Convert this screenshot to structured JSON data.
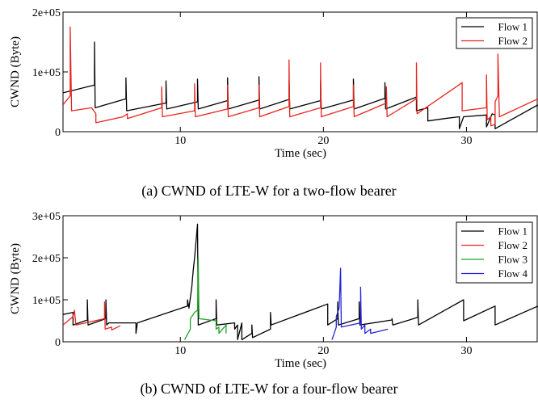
{
  "chart_data": [
    {
      "type": "line",
      "caption": "(a) CWND of LTE-W for a two-flow bearer",
      "xlabel": "Time (sec)",
      "ylabel": "CWND (Byte)",
      "xlim": [
        1.8,
        35
      ],
      "ylim": [
        0,
        200000
      ],
      "xticks": [
        10,
        20,
        30
      ],
      "xtick_labels": [
        "10",
        "20",
        "30"
      ],
      "yticks": [
        0,
        100000,
        200000
      ],
      "ytick_labels": [
        "0",
        "1e+05",
        "2e+05"
      ],
      "grid": false,
      "legend_position": "top-right",
      "series": [
        {
          "name": "Flow 1",
          "color": "#000000",
          "points": [
            [
              1.8,
              65000
            ],
            [
              4.0,
              78000
            ],
            [
              4.0,
              150000
            ],
            [
              4.05,
              40000
            ],
            [
              6.2,
              55000
            ],
            [
              6.2,
              90000
            ],
            [
              6.25,
              35000
            ],
            [
              9.0,
              48000
            ],
            [
              9.0,
              85000
            ],
            [
              9.05,
              38000
            ],
            [
              11.2,
              50000
            ],
            [
              11.2,
              88000
            ],
            [
              11.25,
              38000
            ],
            [
              13.3,
              52000
            ],
            [
              13.3,
              90000
            ],
            [
              13.35,
              38000
            ],
            [
              15.5,
              53000
            ],
            [
              15.5,
              92000
            ],
            [
              15.55,
              38000
            ],
            [
              17.6,
              54000
            ],
            [
              17.6,
              85000
            ],
            [
              17.65,
              38000
            ],
            [
              19.8,
              52000
            ],
            [
              19.8,
              85000
            ],
            [
              19.85,
              38000
            ],
            [
              22.1,
              53000
            ],
            [
              22.1,
              88000
            ],
            [
              22.15,
              38000
            ],
            [
              24.3,
              56000
            ],
            [
              24.3,
              82000
            ],
            [
              24.35,
              38000
            ],
            [
              26.5,
              58000
            ],
            [
              26.5,
              35000
            ],
            [
              27.3,
              40000
            ],
            [
              27.3,
              18000
            ],
            [
              28.5,
              22000
            ],
            [
              29.5,
              25000
            ],
            [
              29.5,
              5000
            ],
            [
              29.8,
              25000
            ],
            [
              31.4,
              28000
            ],
            [
              31.4,
              8000
            ],
            [
              31.8,
              30000
            ],
            [
              32.0,
              28000
            ],
            [
              32.0,
              5000
            ],
            [
              35.0,
              45000
            ]
          ]
        },
        {
          "name": "Flow 2",
          "color": "#e8241e",
          "points": [
            [
              1.8,
              45000
            ],
            [
              2.3,
              60000
            ],
            [
              2.3,
              175000
            ],
            [
              2.4,
              35000
            ],
            [
              3.8,
              40000
            ],
            [
              4.1,
              30000
            ],
            [
              4.1,
              15000
            ],
            [
              6.0,
              25000
            ],
            [
              6.3,
              30000
            ],
            [
              6.3,
              22000
            ],
            [
              8.7,
              40000
            ],
            [
              8.7,
              75000
            ],
            [
              8.75,
              25000
            ],
            [
              11.0,
              35000
            ],
            [
              11.0,
              80000
            ],
            [
              11.05,
              25000
            ],
            [
              13.3,
              38000
            ],
            [
              13.3,
              78000
            ],
            [
              13.35,
              25000
            ],
            [
              15.5,
              40000
            ],
            [
              15.5,
              78000
            ],
            [
              15.55,
              25000
            ],
            [
              17.6,
              42000
            ],
            [
              17.6,
              120000
            ],
            [
              17.65,
              25000
            ],
            [
              19.8,
              40000
            ],
            [
              19.8,
              115000
            ],
            [
              19.85,
              25000
            ],
            [
              22.1,
              42000
            ],
            [
              22.1,
              78000
            ],
            [
              22.15,
              25000
            ],
            [
              24.4,
              48000
            ],
            [
              24.4,
              75000
            ],
            [
              24.45,
              25000
            ],
            [
              26.5,
              55000
            ],
            [
              26.5,
              115000
            ],
            [
              26.55,
              30000
            ],
            [
              29.7,
              82000
            ],
            [
              29.7,
              35000
            ],
            [
              31.4,
              40000
            ],
            [
              31.4,
              95000
            ],
            [
              31.45,
              20000
            ],
            [
              31.7,
              25000
            ],
            [
              31.7,
              10000
            ],
            [
              32.0,
              12000
            ],
            [
              32.0,
              50000
            ],
            [
              32.2,
              60000
            ],
            [
              32.2,
              130000
            ],
            [
              32.3,
              25000
            ],
            [
              35.0,
              55000
            ]
          ]
        }
      ]
    },
    {
      "type": "line",
      "caption": "(b) CWND of LTE-W for a four-flow bearer",
      "xlabel": "Time (sec)",
      "ylabel": "CWND (Byte)",
      "xlim": [
        1.8,
        35
      ],
      "ylim": [
        0,
        300000
      ],
      "xticks": [
        10,
        20,
        30
      ],
      "xtick_labels": [
        "10",
        "20",
        "30"
      ],
      "yticks": [
        0,
        100000,
        200000,
        300000
      ],
      "ytick_labels": [
        "0",
        "1e+05",
        "2e+05",
        "3e+05"
      ],
      "grid": false,
      "legend_position": "top-right",
      "series": [
        {
          "name": "Flow 1",
          "color": "#000000",
          "points": [
            [
              1.8,
              65000
            ],
            [
              2.5,
              70000
            ],
            [
              2.5,
              40000
            ],
            [
              3.5,
              52000
            ],
            [
              3.5,
              100000
            ],
            [
              3.55,
              40000
            ],
            [
              4.8,
              55000
            ],
            [
              4.8,
              100000
            ],
            [
              4.85,
              40000
            ],
            [
              5.0,
              45000
            ],
            [
              6.9,
              45000
            ],
            [
              6.9,
              20000
            ],
            [
              7.0,
              45000
            ],
            [
              10.5,
              85000
            ],
            [
              10.5,
              100000
            ],
            [
              10.6,
              80000
            ],
            [
              10.8,
              130000
            ],
            [
              10.9,
              170000
            ],
            [
              11.0,
              200000
            ],
            [
              11.2,
              280000
            ],
            [
              11.25,
              40000
            ],
            [
              12.5,
              55000
            ],
            [
              12.5,
              100000
            ],
            [
              12.55,
              40000
            ],
            [
              13.8,
              45000
            ],
            [
              13.8,
              30000
            ],
            [
              14.0,
              40000
            ],
            [
              14.0,
              5000
            ],
            [
              14.3,
              45000
            ],
            [
              14.3,
              5000
            ],
            [
              15.0,
              20000
            ],
            [
              15.0,
              40000
            ],
            [
              15.05,
              10000
            ],
            [
              16.3,
              30000
            ],
            [
              16.3,
              70000
            ],
            [
              16.35,
              40000
            ],
            [
              20.3,
              90000
            ],
            [
              20.3,
              40000
            ],
            [
              21.0,
              55000
            ],
            [
              21.0,
              95000
            ],
            [
              21.05,
              40000
            ],
            [
              22.5,
              55000
            ],
            [
              22.5,
              95000
            ],
            [
              22.55,
              40000
            ],
            [
              24.8,
              52000
            ],
            [
              24.8,
              55000
            ],
            [
              24.85,
              40000
            ],
            [
              26.6,
              58000
            ],
            [
              26.6,
              100000
            ],
            [
              26.65,
              40000
            ],
            [
              29.8,
              100000
            ],
            [
              29.8,
              50000
            ],
            [
              32.0,
              85000
            ],
            [
              32.0,
              40000
            ],
            [
              35.0,
              85000
            ]
          ]
        },
        {
          "name": "Flow 2",
          "color": "#e8241e",
          "points": [
            [
              1.8,
              40000
            ],
            [
              2.5,
              60000
            ],
            [
              2.6,
              75000
            ],
            [
              2.7,
              40000
            ],
            [
              4.7,
              55000
            ],
            [
              4.7,
              95000
            ],
            [
              4.75,
              30000
            ],
            [
              5.2,
              35000
            ],
            [
              5.2,
              28000
            ],
            [
              5.8,
              38000
            ]
          ]
        },
        {
          "name": "Flow 3",
          "color": "#22a22a",
          "points": [
            [
              10.3,
              5000
            ],
            [
              10.7,
              30000
            ],
            [
              10.7,
              55000
            ],
            [
              11.0,
              70000
            ],
            [
              11.2,
              75000
            ],
            [
              11.25,
              200000
            ],
            [
              11.3,
              55000
            ],
            [
              12.5,
              50000
            ],
            [
              12.5,
              30000
            ],
            [
              12.7,
              35000
            ],
            [
              12.7,
              20000
            ],
            [
              13.2,
              40000
            ],
            [
              13.2,
              20000
            ]
          ]
        },
        {
          "name": "Flow 4",
          "color": "#2323d8",
          "points": [
            [
              20.6,
              5000
            ],
            [
              20.9,
              35000
            ],
            [
              20.9,
              60000
            ],
            [
              21.1,
              80000
            ],
            [
              21.2,
              175000
            ],
            [
              21.25,
              35000
            ],
            [
              22.6,
              45000
            ],
            [
              22.6,
              130000
            ],
            [
              22.65,
              30000
            ],
            [
              22.9,
              40000
            ],
            [
              22.9,
              20000
            ],
            [
              23.3,
              30000
            ],
            [
              23.3,
              20000
            ],
            [
              24.5,
              30000
            ]
          ]
        }
      ]
    }
  ]
}
